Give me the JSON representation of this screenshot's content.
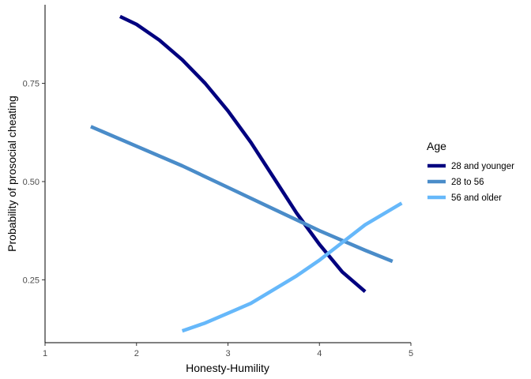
{
  "chart_data": {
    "type": "line",
    "title": "",
    "xlabel": "Honesty-Humility",
    "ylabel": "Probability of prosocial cheating",
    "xlim": [
      1,
      5
    ],
    "ylim": [
      0.09,
      0.95
    ],
    "x_ticks": [
      1,
      2,
      3,
      4,
      5
    ],
    "y_ticks": [
      0.25,
      0.5,
      0.75
    ],
    "x_tick_labels": [
      "1",
      "2",
      "3",
      "4",
      "5"
    ],
    "y_tick_labels": [
      "0.25",
      "0.50",
      "0.75"
    ],
    "grid": false,
    "legend": {
      "title": "Age",
      "placement": "right"
    },
    "series": [
      {
        "name": "28 and younger",
        "color": "#00007F",
        "points": [
          [
            1.82,
            0.92
          ],
          [
            2.0,
            0.9
          ],
          [
            2.25,
            0.86
          ],
          [
            2.5,
            0.81
          ],
          [
            2.75,
            0.75
          ],
          [
            3.0,
            0.68
          ],
          [
            3.25,
            0.6
          ],
          [
            3.5,
            0.51
          ],
          [
            3.75,
            0.42
          ],
          [
            4.0,
            0.34
          ],
          [
            4.25,
            0.27
          ],
          [
            4.5,
            0.22
          ]
        ]
      },
      {
        "name": "28 to 56",
        "color": "#4A8CC9",
        "points": [
          [
            1.5,
            0.64
          ],
          [
            2.0,
            0.59
          ],
          [
            2.5,
            0.54
          ],
          [
            3.0,
            0.485
          ],
          [
            3.5,
            0.43
          ],
          [
            4.0,
            0.375
          ],
          [
            4.5,
            0.325
          ],
          [
            4.8,
            0.297
          ]
        ]
      },
      {
        "name": "56 and older",
        "color": "#66B8FA",
        "points": [
          [
            2.5,
            0.12
          ],
          [
            2.75,
            0.14
          ],
          [
            3.0,
            0.165
          ],
          [
            3.25,
            0.19
          ],
          [
            3.5,
            0.225
          ],
          [
            3.75,
            0.26
          ],
          [
            4.0,
            0.3
          ],
          [
            4.25,
            0.345
          ],
          [
            4.5,
            0.39
          ],
          [
            4.9,
            0.445
          ]
        ]
      }
    ]
  }
}
